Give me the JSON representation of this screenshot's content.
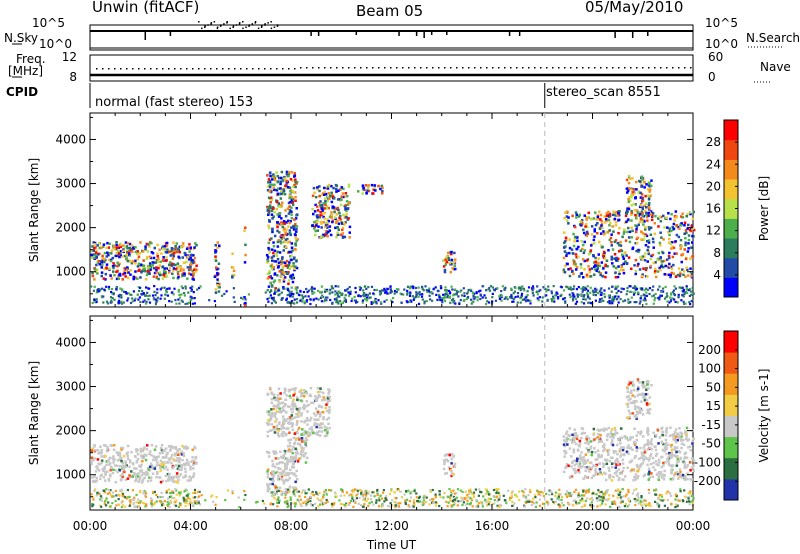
{
  "header": {
    "station": "Unwin (fitACF)",
    "beam": "Beam 05",
    "date": "05/May/2010"
  },
  "top_panels": {
    "nsky_label": "N.Sky",
    "nsearch_label": "N.Search",
    "nsky_ticks": [
      "10^5",
      "10^0"
    ],
    "nsearch_ticks": [
      "10^5",
      "10^0"
    ],
    "freq_label_line1": "Freq.",
    "freq_label_line2": "[MHz]",
    "freq_ticks": [
      "12",
      "8"
    ],
    "nave_label": "Nave",
    "nave_ticks": [
      "60",
      "0"
    ],
    "cpid_label": "CPID",
    "cpid_segments": [
      {
        "text": "normal (fast stereo) 153",
        "start_hour": 0
      },
      {
        "text": "stereo_scan 8551",
        "start_hour": 18.1
      }
    ]
  },
  "chart_data": [
    {
      "type": "heatmap",
      "title": "Power",
      "ylabel": "Slant Range [km]",
      "ylim": [
        200,
        4600
      ],
      "yticks": [
        1000,
        2000,
        3000,
        4000
      ],
      "colorbar_label": "Power [dB]",
      "colorbar_ticks": [
        "28",
        "24",
        "20",
        "16",
        "12",
        "8",
        "4"
      ],
      "colorbar_colors": [
        "#0000ff",
        "#224ba8",
        "#2c7d5e",
        "#4caf4c",
        "#b8e04a",
        "#f2c230",
        "#f58a1c",
        "#f0460f",
        "#ff0000"
      ],
      "scatter_regions": [
        {
          "x": [
            0,
            4.2
          ],
          "y": [
            850,
            1700
          ]
        },
        {
          "x": [
            4.9,
            5.1
          ],
          "y": [
            500,
            1800
          ]
        },
        {
          "x": [
            5.6,
            5.7
          ],
          "y": [
            800,
            1600
          ]
        },
        {
          "x": [
            6.1,
            6.15
          ],
          "y": [
            200,
            2100
          ]
        },
        {
          "x": [
            7.0,
            8.2
          ],
          "y": [
            650,
            3300
          ]
        },
        {
          "x": [
            8.8,
            10.3
          ],
          "y": [
            1800,
            3000
          ]
        },
        {
          "x": [
            10.6,
            11.6
          ],
          "y": [
            2800,
            3000
          ]
        },
        {
          "x": [
            14.0,
            14.5
          ],
          "y": [
            1000,
            1500
          ]
        },
        {
          "x": [
            18.8,
            24
          ],
          "y": [
            900,
            2400
          ]
        },
        {
          "x": [
            21.3,
            22.3
          ],
          "y": [
            2300,
            3200
          ]
        }
      ]
    },
    {
      "type": "heatmap",
      "title": "Velocity",
      "ylabel": "Slant Range [km]",
      "ylim": [
        200,
        4600
      ],
      "yticks": [
        1000,
        2000,
        3000,
        4000
      ],
      "xlabel": "Time UT",
      "xticks": [
        "00:00",
        "04:00",
        "08:00",
        "12:00",
        "16:00",
        "20:00",
        "00:00"
      ],
      "xlim_hours": [
        0,
        24
      ],
      "colorbar_label": "Velocity [m s-1]",
      "colorbar_ticks": [
        "200",
        "100",
        "50",
        "15",
        "-15",
        "-50",
        "-100",
        "-200"
      ],
      "colorbar_colors": [
        "#2233aa",
        "#2b6e3f",
        "#5ec44a",
        "#c8c8c8",
        "#f2cc44",
        "#f59a20",
        "#f05a14",
        "#ff0000"
      ],
      "scatter_regions": [
        {
          "x": [
            0,
            4.2
          ],
          "y": [
            850,
            1700
          ]
        },
        {
          "x": [
            7.0,
            8.2
          ],
          "y": [
            600,
            1600
          ]
        },
        {
          "x": [
            7.8,
            8.6
          ],
          "y": [
            1300,
            1900
          ]
        },
        {
          "x": [
            7.0,
            9.5
          ],
          "y": [
            1900,
            3000
          ]
        },
        {
          "x": [
            14.0,
            14.5
          ],
          "y": [
            1000,
            1500
          ]
        },
        {
          "x": [
            18.8,
            24
          ],
          "y": [
            900,
            2100
          ]
        },
        {
          "x": [
            21.3,
            22.3
          ],
          "y": [
            2300,
            3200
          ]
        }
      ]
    }
  ]
}
